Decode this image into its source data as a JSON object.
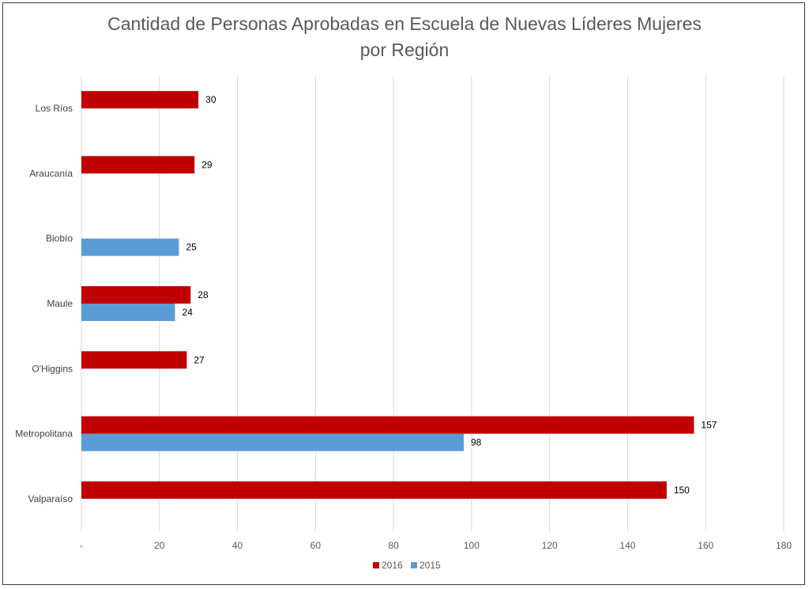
{
  "chart_data": {
    "type": "bar",
    "orientation": "horizontal",
    "title_lines": [
      "Cantidad de Personas Aprobadas en Escuela de Nuevas Líderes Mujeres",
      "por Región"
    ],
    "categories": [
      "Los Ríos",
      "Araucanía",
      "Biobío",
      "Maule",
      "O'Higgins",
      "Metropolitana",
      "Valparaíso"
    ],
    "series": [
      {
        "name": "2016",
        "color": "#c00000",
        "values": [
          30,
          29,
          null,
          28,
          27,
          157,
          150
        ]
      },
      {
        "name": "2015",
        "color": "#5b9bd5",
        "values": [
          null,
          null,
          25,
          24,
          null,
          98,
          null
        ]
      }
    ],
    "xlim": [
      0,
      180
    ],
    "x_ticks": [
      0,
      20,
      40,
      60,
      80,
      100,
      120,
      140,
      160,
      180
    ],
    "x_tick_labels": [
      "-",
      "20",
      "40",
      "60",
      "80",
      "100",
      "120",
      "140",
      "160",
      "180"
    ],
    "grid": true,
    "legend_position": "bottom"
  }
}
